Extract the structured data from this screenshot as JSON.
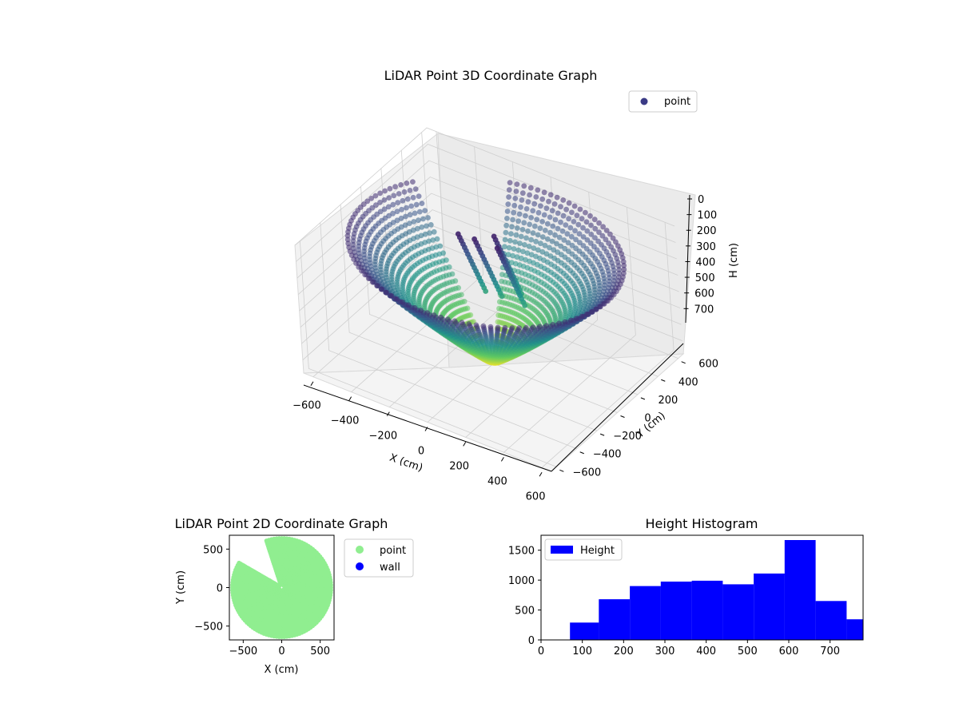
{
  "colors": {
    "colormap": [
      "#440154",
      "#3b528b",
      "#21918c",
      "#5ec962",
      "#fde725"
    ],
    "pane_fill": "#f2f2f2",
    "grid": "#cfcfcf",
    "scatter2d_point": "#90ee90",
    "scatter2d_wall": "#0000ff",
    "histogram_bar": "#0000ff"
  },
  "chart_data": [
    {
      "type": "scatter3d",
      "title": "LiDAR Point 3D Coordinate Graph",
      "xlabel": "X (cm)",
      "ylabel": "Y (cm)",
      "zlabel": "H (cm)",
      "x_ticks": [
        "−600",
        "−400",
        "−200",
        "0",
        "200",
        "400",
        "600"
      ],
      "y_ticks": [
        "−600",
        "−400",
        "−200",
        "0",
        "200",
        "400",
        "600"
      ],
      "z_ticks": [
        "0",
        "100",
        "200",
        "300",
        "400",
        "500",
        "600",
        "700"
      ],
      "xlim": [
        -650,
        650
      ],
      "ylim": [
        -650,
        650
      ],
      "zlim": [
        0,
        780
      ],
      "z_inverted": true,
      "grid": true,
      "legend": {
        "position": "top-right",
        "entries": [
          {
            "label": "point",
            "color": "#3b3b86"
          }
        ]
      },
      "series": [
        {
          "name": "point",
          "colormap": "viridis"
        }
      ]
    },
    {
      "type": "scatter",
      "title": "LiDAR Point 2D Coordinate Graph",
      "xlabel": "X (cm)",
      "ylabel": "Y (cm)",
      "x_ticks": [
        "−500",
        "0",
        "500"
      ],
      "y_ticks": [
        "500",
        "0",
        "−500"
      ],
      "xlim": [
        -680,
        680
      ],
      "ylim": [
        -680,
        680
      ],
      "grid": false,
      "legend": {
        "position": "outside-right",
        "entries": [
          {
            "label": "point",
            "color": "#90ee90"
          },
          {
            "label": "wall",
            "color": "#0000ff"
          }
        ]
      },
      "series": [
        {
          "name": "point"
        },
        {
          "name": "wall"
        }
      ]
    },
    {
      "type": "bar",
      "title": "Height Histogram",
      "x_ticks": [
        "0",
        "100",
        "200",
        "300",
        "400",
        "500",
        "600",
        "700"
      ],
      "y_ticks": [
        "0",
        "500",
        "1000",
        "1500"
      ],
      "xlim": [
        0,
        780
      ],
      "ylim": [
        0,
        1750
      ],
      "grid": false,
      "legend": {
        "position": "top-left",
        "entries": [
          {
            "label": "Height",
            "color": "#0000ff"
          }
        ]
      },
      "bins": [
        {
          "start": 70,
          "end": 140,
          "count": 290
        },
        {
          "start": 140,
          "end": 215,
          "count": 680
        },
        {
          "start": 215,
          "end": 290,
          "count": 900
        },
        {
          "start": 290,
          "end": 365,
          "count": 975
        },
        {
          "start": 365,
          "end": 440,
          "count": 990
        },
        {
          "start": 440,
          "end": 515,
          "count": 930
        },
        {
          "start": 515,
          "end": 590,
          "count": 1110
        },
        {
          "start": 590,
          "end": 665,
          "count": 1670
        },
        {
          "start": 665,
          "end": 740,
          "count": 650
        },
        {
          "start": 740,
          "end": 780,
          "count": 345
        }
      ]
    }
  ]
}
